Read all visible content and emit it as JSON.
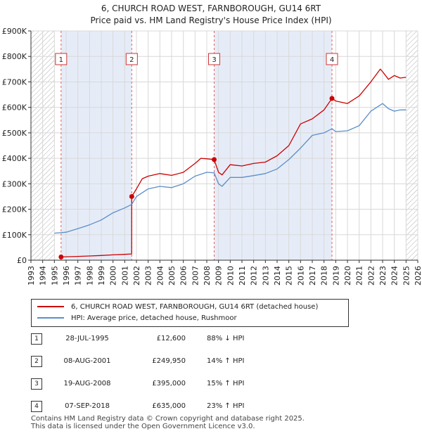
{
  "chart_data": {
    "type": "line",
    "title": "6, CHURCH ROAD WEST, FARNBOROUGH, GU14 6RT",
    "subtitle": "Price paid vs. HM Land Registry's House Price Index (HPI)",
    "xlabel": "",
    "ylabel": "",
    "xlim": [
      1993,
      2026
    ],
    "ylim": [
      0,
      900000
    ],
    "x_ticks": [
      1993,
      1994,
      1995,
      1996,
      1997,
      1998,
      1999,
      2000,
      2001,
      2002,
      2003,
      2004,
      2005,
      2006,
      2007,
      2008,
      2009,
      2010,
      2011,
      2012,
      2013,
      2014,
      2015,
      2016,
      2017,
      2018,
      2019,
      2020,
      2021,
      2022,
      2023,
      2024,
      2025,
      2026
    ],
    "y_ticks": [
      0,
      100000,
      200000,
      300000,
      400000,
      500000,
      600000,
      700000,
      800000,
      900000
    ],
    "y_tick_labels": [
      "£0",
      "£100K",
      "£200K",
      "£300K",
      "£400K",
      "£500K",
      "£600K",
      "£700K",
      "£800K",
      "£900K"
    ],
    "grid": true,
    "hatched_ranges": [
      [
        1993,
        1995.0
      ],
      [
        2025.0,
        2026
      ]
    ],
    "shaded_ranges": [
      [
        1995.57,
        2001.6
      ],
      [
        2008.63,
        2018.68
      ]
    ],
    "series": [
      {
        "name": "6, CHURCH ROAD WEST, FARNBOROUGH, GU14 6RT (detached house)",
        "color": "#cc0000",
        "x": [
          1995.57,
          1996,
          1997,
          1998,
          1999,
          2000,
          2001,
          2001.59,
          2001.6,
          2002,
          2002.5,
          2003,
          2004,
          2005,
          2006,
          2007,
          2007.5,
          2008,
          2008.63,
          2009,
          2009.3,
          2010,
          2011,
          2012,
          2013,
          2014,
          2015,
          2016,
          2017,
          2018,
          2018.68,
          2019,
          2020,
          2021,
          2022,
          2022.8,
          2023,
          2023.5,
          2024,
          2024.5,
          2025
        ],
        "y": [
          12600,
          13500,
          14800,
          16500,
          18500,
          21000,
          23000,
          24500,
          249950,
          280000,
          320000,
          330000,
          340000,
          333000,
          345000,
          380000,
          400000,
          398000,
          395000,
          345000,
          335000,
          375000,
          370000,
          380000,
          385000,
          410000,
          450000,
          535000,
          555000,
          590000,
          635000,
          625000,
          615000,
          645000,
          700000,
          750000,
          740000,
          710000,
          725000,
          715000,
          718000
        ]
      },
      {
        "name": "HPI: Average price, detached house, Rushmoor",
        "color": "#5b8ec9",
        "x": [
          1995,
          1996,
          1997,
          1998,
          1999,
          2000,
          2001,
          2001.6,
          2002,
          2003,
          2004,
          2005,
          2006,
          2007,
          2008,
          2008.63,
          2009,
          2009.3,
          2010,
          2011,
          2012,
          2013,
          2014,
          2015,
          2016,
          2017,
          2018,
          2018.68,
          2019,
          2020,
          2021,
          2022,
          2023,
          2023.5,
          2024,
          2024.5,
          2025
        ],
        "y": [
          106000,
          110000,
          124000,
          139000,
          158000,
          186000,
          205000,
          219000,
          250000,
          280000,
          290000,
          285000,
          300000,
          330000,
          345000,
          343000,
          300000,
          290000,
          325000,
          325000,
          332000,
          340000,
          358000,
          395000,
          440000,
          490000,
          500000,
          516000,
          505000,
          508000,
          528000,
          585000,
          615000,
          595000,
          585000,
          590000,
          590000
        ]
      }
    ],
    "sales": [
      {
        "num": "1",
        "x": 1995.57,
        "y": 12600
      },
      {
        "num": "2",
        "x": 2001.6,
        "y": 249950
      },
      {
        "num": "3",
        "x": 2008.63,
        "y": 395000
      },
      {
        "num": "4",
        "x": 2018.68,
        "y": 635000
      }
    ]
  },
  "legend": {
    "property_label": "6, CHURCH ROAD WEST, FARNBOROUGH, GU14 6RT (detached house)",
    "hpi_label": "HPI: Average price, detached house, Rushmoor",
    "property_color": "#cc0000",
    "hpi_color": "#5b8ec9"
  },
  "sales_table": [
    {
      "num": "1",
      "date": "28-JUL-1995",
      "price": "£12,600",
      "hpi": "88% ↓ HPI"
    },
    {
      "num": "2",
      "date": "08-AUG-2001",
      "price": "£249,950",
      "hpi": "14% ↑ HPI"
    },
    {
      "num": "3",
      "date": "19-AUG-2008",
      "price": "£395,000",
      "hpi": "15% ↑ HPI"
    },
    {
      "num": "4",
      "date": "07-SEP-2018",
      "price": "£635,000",
      "hpi": "23% ↑ HPI"
    }
  ],
  "footer": {
    "line1": "Contains HM Land Registry data © Crown copyright and database right 2025.",
    "line2": "This data is licensed under the Open Government Licence v3.0."
  }
}
